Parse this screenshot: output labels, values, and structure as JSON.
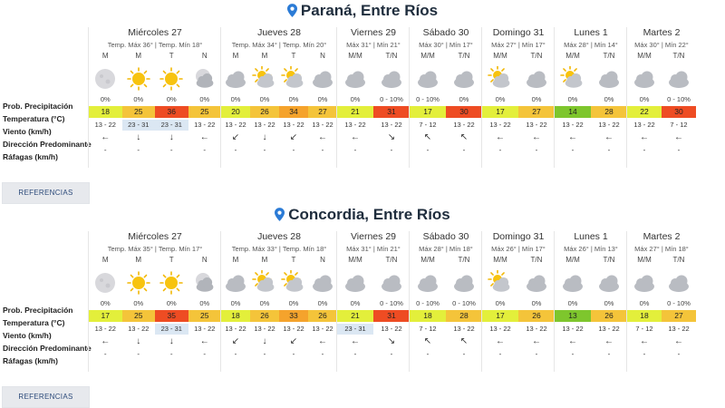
{
  "labels": {
    "prob": "Prob. Precipitación",
    "temp": "Temperatura (°C)",
    "wind": "Viento (km/h)",
    "dir": "Dirección Predominante",
    "raf": "Ráfagas (km/h)"
  },
  "ref_label": "REFERENCIAS",
  "colors": {
    "green": "#7ec62d",
    "yellow": "#e3ef3b",
    "amber": "#f4c43a",
    "orange": "#f5a32c",
    "red": "#ee4c23",
    "wind_highlight": "#dbe7f3"
  },
  "cities": [
    {
      "name": "Paraná, Entre Ríos",
      "days": [
        {
          "name": "Miércoles 27",
          "temps": "Temp. Máx 36° | Temp. Mín 18°",
          "cols": [
            {
              "p": "M",
              "icon": "moon",
              "pp": "0%",
              "t": "18",
              "tc": "yellow",
              "w": "13 - 22",
              "dir": "←",
              "r": "-"
            },
            {
              "p": "M",
              "icon": "sun",
              "pp": "0%",
              "t": "25",
              "tc": "amber",
              "w": "23 - 31",
              "hl": true,
              "dir": "↓",
              "r": "-"
            },
            {
              "p": "T",
              "icon": "sun",
              "pp": "0%",
              "t": "36",
              "tc": "red",
              "w": "23 - 31",
              "hl": true,
              "dir": "↓",
              "r": "-"
            },
            {
              "p": "N",
              "icon": "cloud-moon",
              "pp": "0%",
              "t": "25",
              "tc": "amber",
              "w": "13 - 22",
              "dir": "←",
              "r": "-"
            }
          ]
        },
        {
          "name": "Jueves 28",
          "temps": "Temp. Máx 34° | Temp. Mín 20°",
          "cols": [
            {
              "p": "M",
              "icon": "cloud",
              "pp": "0%",
              "t": "20",
              "tc": "yellow",
              "w": "13 - 22",
              "dir": "↙",
              "r": "-"
            },
            {
              "p": "M",
              "icon": "sun-cloud",
              "pp": "0%",
              "t": "26",
              "tc": "amber",
              "w": "13 - 22",
              "dir": "↓",
              "r": "-"
            },
            {
              "p": "T",
              "icon": "sun-cloud",
              "pp": "0%",
              "t": "34",
              "tc": "orange",
              "w": "13 - 22",
              "dir": "↙",
              "r": "-"
            },
            {
              "p": "N",
              "icon": "cloud",
              "pp": "0%",
              "t": "27",
              "tc": "amber",
              "w": "13 - 22",
              "dir": "←",
              "r": "-"
            }
          ]
        },
        {
          "name": "Viernes 29",
          "temps": "Máx 31° | Mín 21°",
          "cols": [
            {
              "p": "M/M",
              "icon": "cloud",
              "pp": "0%",
              "t": "21",
              "tc": "yellow",
              "w": "13 - 22",
              "dir": "←",
              "r": "-"
            },
            {
              "p": "T/N",
              "icon": "cloud",
              "pp": "0 - 10%",
              "t": "31",
              "tc": "red",
              "w": "13 - 22",
              "dir": "↘",
              "r": "-"
            }
          ]
        },
        {
          "name": "Sábado 30",
          "temps": "Máx 30° | Mín 17°",
          "cols": [
            {
              "p": "M/M",
              "icon": "cloud",
              "pp": "0 - 10%",
              "t": "17",
              "tc": "yellow",
              "w": "7 - 12",
              "dir": "↖",
              "r": "-"
            },
            {
              "p": "T/N",
              "icon": "cloud",
              "pp": "0%",
              "t": "30",
              "tc": "red",
              "w": "13 - 22",
              "dir": "↖",
              "r": "-"
            }
          ]
        },
        {
          "name": "Domingo 31",
          "temps": "Máx 27° | Mín 17°",
          "cols": [
            {
              "p": "M/M",
              "icon": "sun-cloud",
              "pp": "0%",
              "t": "17",
              "tc": "yellow",
              "w": "13 - 22",
              "dir": "←",
              "r": "-"
            },
            {
              "p": "T/N",
              "icon": "cloud",
              "pp": "0%",
              "t": "27",
              "tc": "amber",
              "w": "13 - 22",
              "dir": "←",
              "r": "-"
            }
          ]
        },
        {
          "name": "Lunes 1",
          "temps": "Máx 28° | Mín 14°",
          "cols": [
            {
              "p": "M/M",
              "icon": "sun-cloud",
              "pp": "0%",
              "t": "14",
              "tc": "green",
              "w": "13 - 22",
              "dir": "←",
              "r": "-"
            },
            {
              "p": "T/N",
              "icon": "cloud",
              "pp": "0%",
              "t": "28",
              "tc": "amber",
              "w": "13 - 22",
              "dir": "←",
              "r": "-"
            }
          ]
        },
        {
          "name": "Martes 2",
          "temps": "Máx 30° | Mín 22°",
          "cols": [
            {
              "p": "M/M",
              "icon": "cloud",
              "pp": "0%",
              "t": "22",
              "tc": "yellow",
              "w": "13 - 22",
              "dir": "←",
              "r": "-"
            },
            {
              "p": "T/N",
              "icon": "cloud",
              "pp": "0 - 10%",
              "t": "30",
              "tc": "red",
              "w": "7 - 12",
              "dir": "←",
              "r": "-"
            }
          ]
        }
      ]
    },
    {
      "name": "Concordia, Entre Ríos",
      "days": [
        {
          "name": "Miércoles 27",
          "temps": "Temp. Máx 35° | Temp. Mín 17°",
          "cols": [
            {
              "p": "M",
              "icon": "moon",
              "pp": "0%",
              "t": "17",
              "tc": "yellow",
              "w": "13 - 22",
              "dir": "←",
              "r": "-"
            },
            {
              "p": "M",
              "icon": "sun",
              "pp": "0%",
              "t": "25",
              "tc": "amber",
              "w": "13 - 22",
              "dir": "↓",
              "r": "-"
            },
            {
              "p": "T",
              "icon": "sun",
              "pp": "0%",
              "t": "35",
              "tc": "red",
              "w": "23 - 31",
              "hl": true,
              "dir": "↓",
              "r": "-"
            },
            {
              "p": "N",
              "icon": "cloud-moon",
              "pp": "0%",
              "t": "25",
              "tc": "amber",
              "w": "13 - 22",
              "dir": "←",
              "r": "-"
            }
          ]
        },
        {
          "name": "Jueves 28",
          "temps": "Temp. Máx 33° | Temp. Mín 18°",
          "cols": [
            {
              "p": "M",
              "icon": "cloud",
              "pp": "0%",
              "t": "18",
              "tc": "yellow",
              "w": "13 - 22",
              "dir": "↙",
              "r": "-"
            },
            {
              "p": "M",
              "icon": "sun-cloud",
              "pp": "0%",
              "t": "26",
              "tc": "amber",
              "w": "13 - 22",
              "dir": "↓",
              "r": "-"
            },
            {
              "p": "T",
              "icon": "sun-cloud",
              "pp": "0%",
              "t": "33",
              "tc": "orange",
              "w": "13 - 22",
              "dir": "↙",
              "r": "-"
            },
            {
              "p": "N",
              "icon": "cloud",
              "pp": "0%",
              "t": "26",
              "tc": "amber",
              "w": "13 - 22",
              "dir": "←",
              "r": "-"
            }
          ]
        },
        {
          "name": "Viernes 29",
          "temps": "Máx 31° | Mín 21°",
          "cols": [
            {
              "p": "M/M",
              "icon": "cloud",
              "pp": "0%",
              "t": "21",
              "tc": "yellow",
              "w": "23 - 31",
              "hl": true,
              "dir": "←",
              "r": "-"
            },
            {
              "p": "T/N",
              "icon": "cloud",
              "pp": "0 - 10%",
              "t": "31",
              "tc": "red",
              "w": "13 - 22",
              "dir": "↘",
              "r": "-"
            }
          ]
        },
        {
          "name": "Sábado 30",
          "temps": "Máx 28° | Mín 18°",
          "cols": [
            {
              "p": "M/M",
              "icon": "cloud",
              "pp": "0 - 10%",
              "t": "18",
              "tc": "yellow",
              "w": "7 - 12",
              "dir": "↖",
              "r": "-"
            },
            {
              "p": "T/N",
              "icon": "cloud",
              "pp": "0 - 10%",
              "t": "28",
              "tc": "amber",
              "w": "13 - 22",
              "dir": "↖",
              "r": "-"
            }
          ]
        },
        {
          "name": "Domingo 31",
          "temps": "Máx 26° | Mín 17°",
          "cols": [
            {
              "p": "M/M",
              "icon": "sun-cloud",
              "pp": "0%",
              "t": "17",
              "tc": "yellow",
              "w": "13 - 22",
              "dir": "←",
              "r": "-"
            },
            {
              "p": "T/N",
              "icon": "cloud",
              "pp": "0%",
              "t": "26",
              "tc": "amber",
              "w": "13 - 22",
              "dir": "←",
              "r": "-"
            }
          ]
        },
        {
          "name": "Lunes 1",
          "temps": "Máx 26° | Mín 13°",
          "cols": [
            {
              "p": "M/M",
              "icon": "cloud",
              "pp": "0%",
              "t": "13",
              "tc": "green",
              "w": "13 - 22",
              "dir": "←",
              "r": "-"
            },
            {
              "p": "T/N",
              "icon": "cloud",
              "pp": "0%",
              "t": "26",
              "tc": "amber",
              "w": "13 - 22",
              "dir": "←",
              "r": "-"
            }
          ]
        },
        {
          "name": "Martes 2",
          "temps": "Máx 27° | Mín 18°",
          "cols": [
            {
              "p": "M/M",
              "icon": "cloud",
              "pp": "0%",
              "t": "18",
              "tc": "yellow",
              "w": "7 - 12",
              "dir": "←",
              "r": "-"
            },
            {
              "p": "T/N",
              "icon": "cloud",
              "pp": "0 - 10%",
              "t": "27",
              "tc": "amber",
              "w": "13 - 22",
              "dir": "←",
              "r": "-"
            }
          ]
        }
      ]
    }
  ]
}
